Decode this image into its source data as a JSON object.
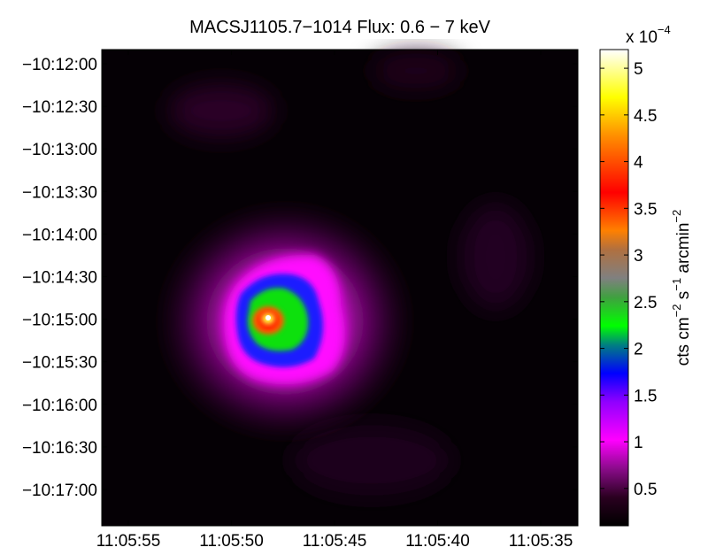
{
  "chart_data": {
    "type": "heatmap",
    "title": "MACSJ1105.7−1014 Flux: 0.6 − 7 keV",
    "x_ticks": [
      "11:05:55",
      "11:05:50",
      "11:05:45",
      "11:05:40",
      "11:05:35"
    ],
    "y_ticks": [
      "−10:12:00",
      "−10:12:30",
      "−10:13:00",
      "−10:13:30",
      "−10:14:00",
      "−10:14:30",
      "−10:15:00",
      "−10:15:30",
      "−10:16:00",
      "−10:16:30",
      "−10:17:00"
    ],
    "colorbar": {
      "multiplier": "x 10",
      "multiplier_exponent": "−4",
      "ticks": [
        "5",
        "4.5",
        "4",
        "3.5",
        "3",
        "2.5",
        "2",
        "1.5",
        "1",
        "0.5"
      ],
      "tick_values": [
        5,
        4.5,
        4,
        3.5,
        3,
        2.5,
        2,
        1.5,
        1,
        0.5
      ],
      "range": [
        0.1,
        5.2
      ],
      "label_parts": {
        "a": "cts cm",
        "a_exp": "−2",
        "b": " s",
        "b_exp": "−1",
        "c": " arcmin",
        "c_exp": "−2"
      },
      "colormap": [
        "#000000",
        "#2a0020",
        "#ff00ff",
        "#0000ff",
        "#00ff00",
        "#808080",
        "#ff8000",
        "#ff0000",
        "#ffff00",
        "#ffffff"
      ]
    },
    "peak": {
      "x": "11:05:48.7",
      "y": "−10:15:00",
      "value": 5.2
    }
  }
}
